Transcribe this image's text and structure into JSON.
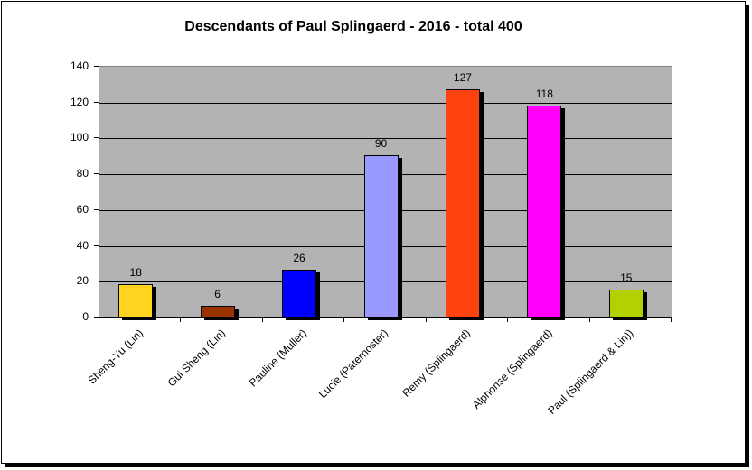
{
  "chart_data": {
    "type": "bar",
    "title": "Descendants of Paul Splingaerd - 2016 - total 400",
    "xlabel": "",
    "ylabel": "",
    "ylim": [
      0,
      140
    ],
    "yticks": [
      0,
      20,
      40,
      60,
      80,
      100,
      120,
      140
    ],
    "grid": true,
    "legend": "none",
    "categories": [
      "Sheng-Yu (Lin)",
      "Gui Sheng (Lin)",
      "Pauline (Muller)",
      "Lucie (Paternoster)",
      "Remy (Splingaerd)",
      "Alphonse (Splingaerd)",
      "Paul (Splingaerd & Lin))"
    ],
    "values": [
      18,
      6,
      26,
      90,
      127,
      118,
      15
    ],
    "colors": [
      "#ffd320",
      "#993300",
      "#0000ff",
      "#9999ff",
      "#ff420e",
      "#ff00ff",
      "#b3d000"
    ],
    "plot_background": "#b3b3b3"
  },
  "labels": {
    "title": "Descendants of Paul Splingaerd - 2016 - total 400",
    "y": [
      "0",
      "20",
      "40",
      "60",
      "80",
      "100",
      "120",
      "140"
    ],
    "values": [
      "18",
      "6",
      "26",
      "90",
      "127",
      "118",
      "15"
    ],
    "categories": [
      "Sheng-Yu (Lin)",
      "Gui Sheng (Lin)",
      "Pauline (Muller)",
      "Lucie (Paternoster)",
      "Remy (Splingaerd)",
      "Alphonse (Splingaerd)",
      "Paul (Splingaerd & Lin))"
    ]
  }
}
